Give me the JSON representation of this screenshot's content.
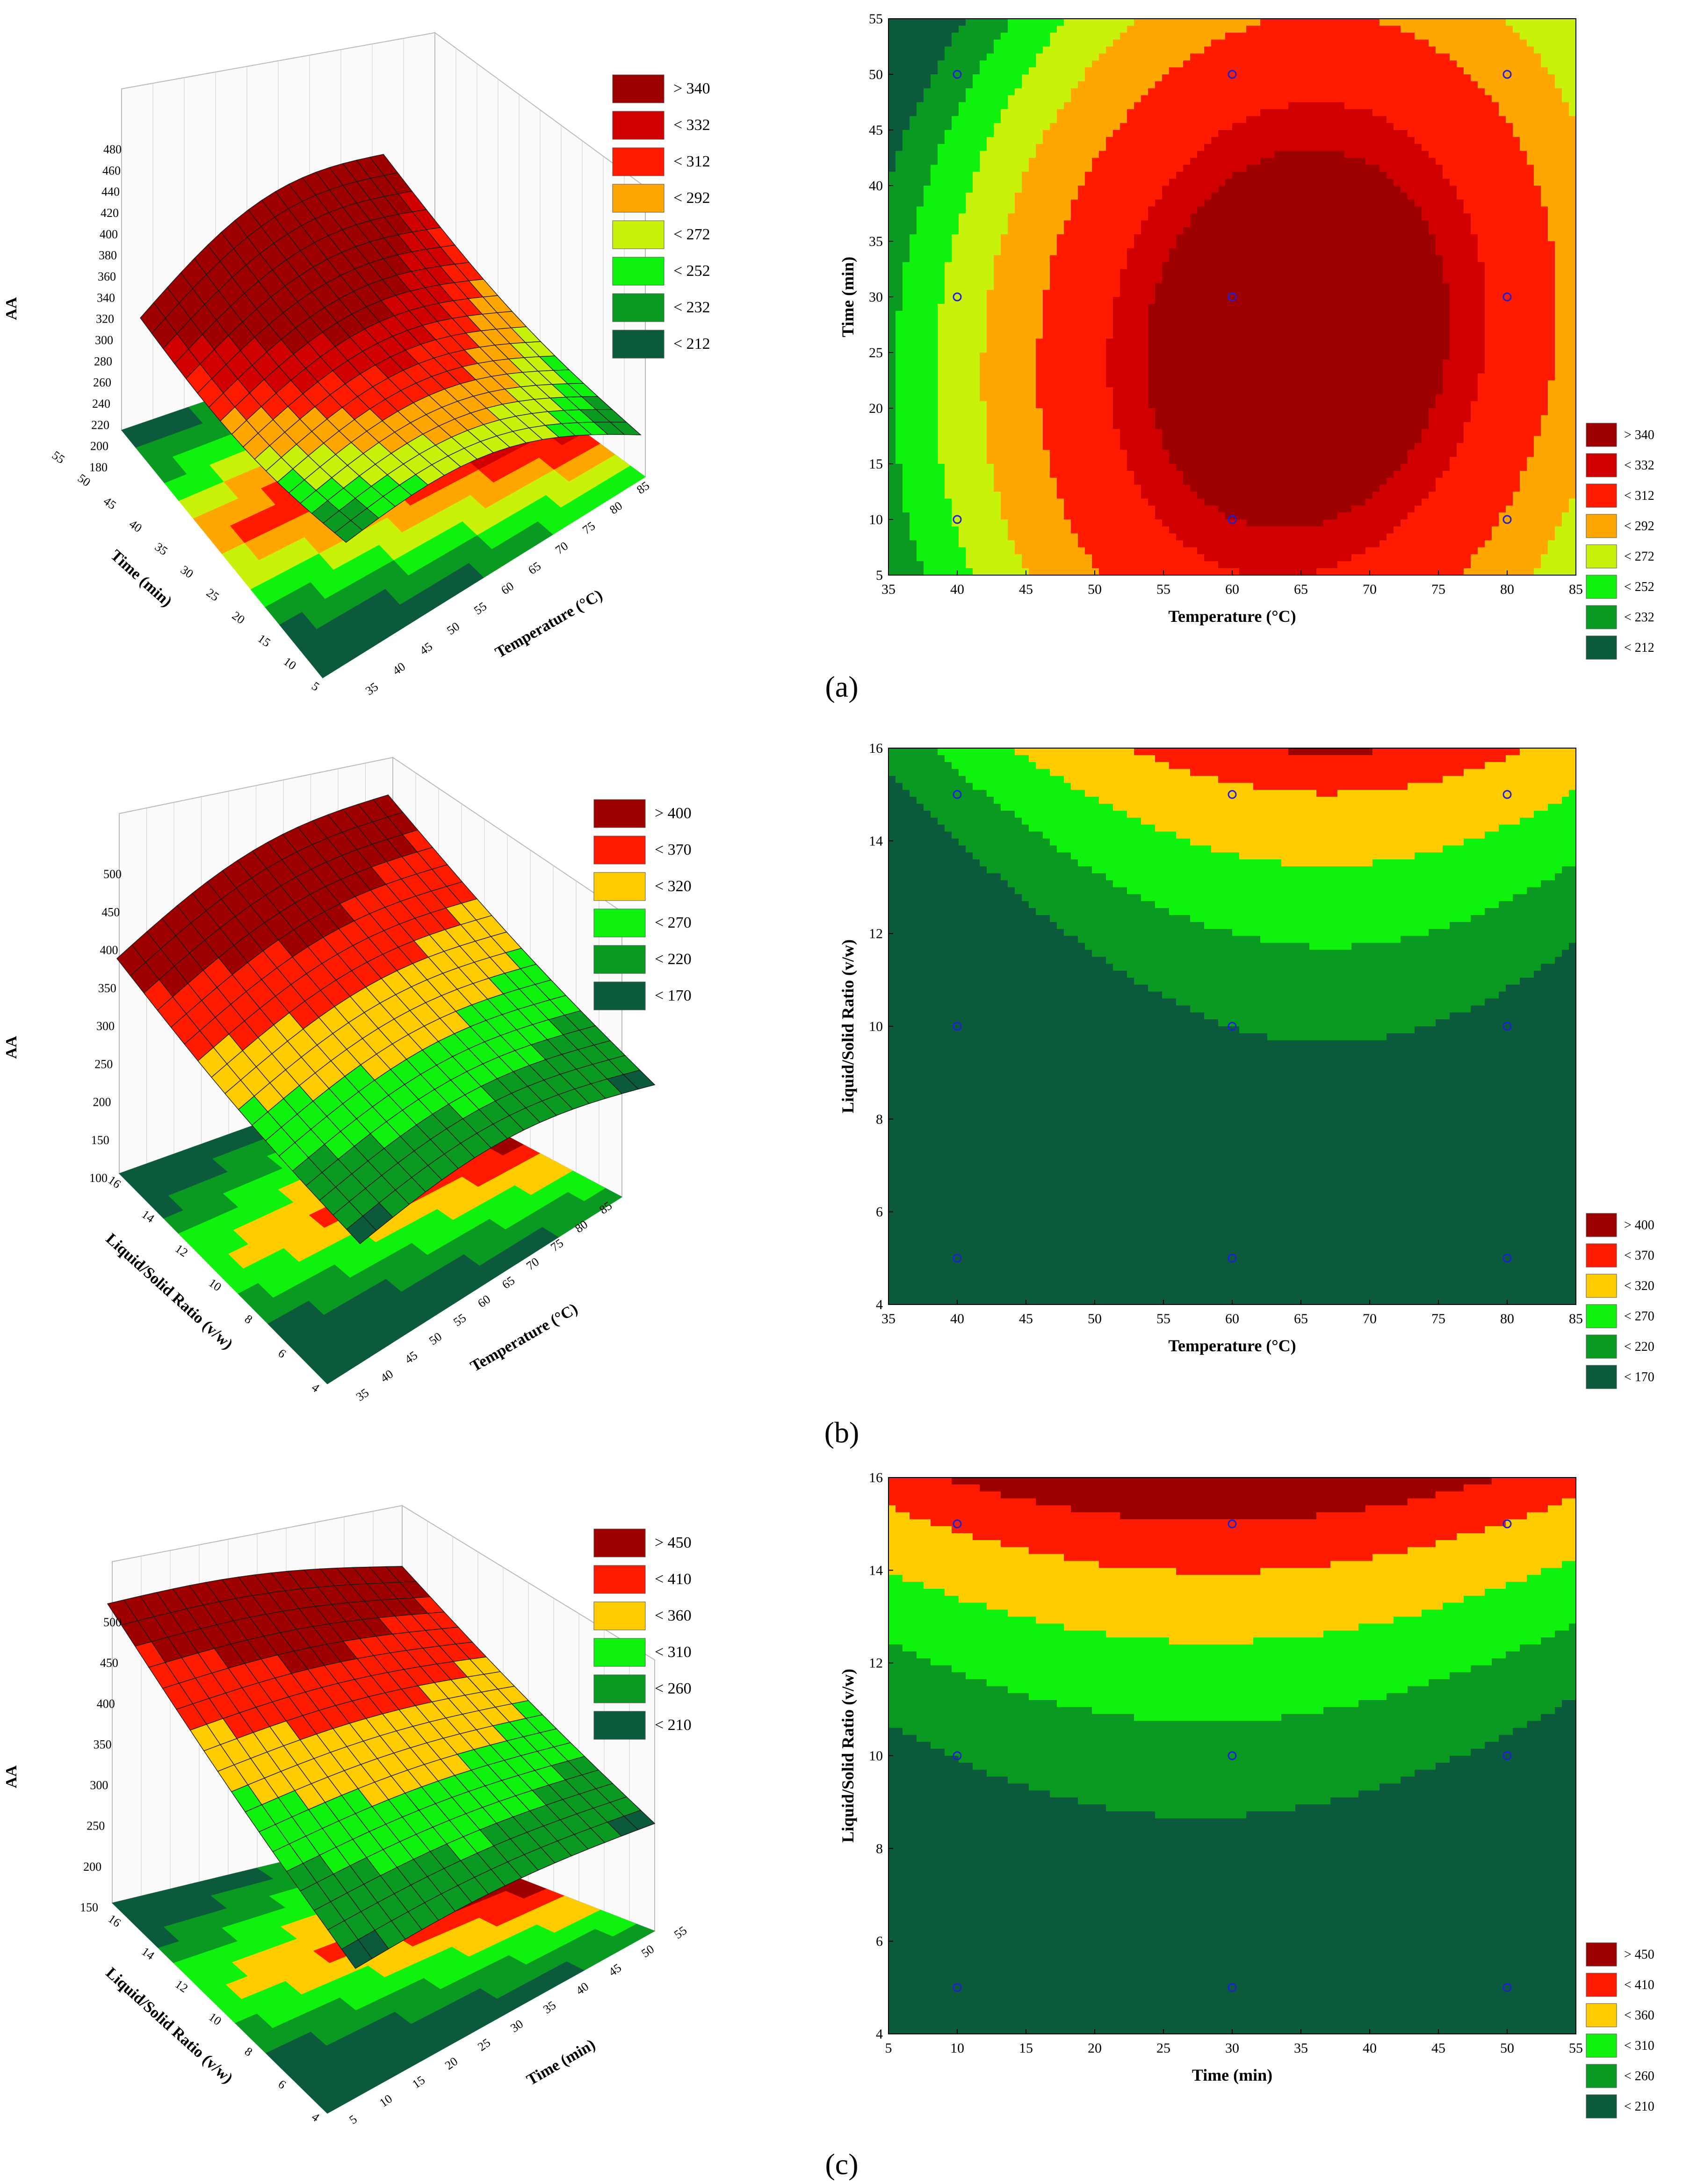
{
  "figure": {
    "panel_labels": [
      "(a)",
      "(b)",
      "(c)"
    ]
  },
  "colors": {
    "scale6": [
      "#0c5a3c",
      "#0a9a22",
      "#0ef20e",
      "#ffcc00",
      "#ff1a00",
      "#9e0000"
    ],
    "scale8": [
      "#0c5a3c",
      "#0a9a22",
      "#0ef20e",
      "#c9f20a",
      "#ffa600",
      "#ff1a00",
      "#d00000",
      "#9e0000"
    ],
    "points": "#2020d0",
    "grid": "#cccccc"
  },
  "chart_data": [
    {
      "id": "a-surface",
      "type": "surface3d",
      "zlabel": "AA",
      "xlabel": "Temperature (°C)",
      "ylabel": "Time (min)",
      "xticks": [
        "35",
        "40",
        "45",
        "50",
        "55",
        "60",
        "65",
        "70",
        "75",
        "80",
        "85"
      ],
      "yticks": [
        "5",
        "10",
        "15",
        "20",
        "25",
        "30",
        "35",
        "40",
        "45",
        "50",
        "55"
      ],
      "zticks": [
        "180",
        "200",
        "220",
        "240",
        "260",
        "280",
        "300",
        "320",
        "340",
        "360",
        "380",
        "400",
        "420",
        "440",
        "460",
        "480"
      ],
      "legend": [
        "> 340",
        "< 332",
        "< 312",
        "< 292",
        "< 272",
        "< 252",
        "< 232",
        "< 212"
      ]
    },
    {
      "id": "a-contour",
      "type": "contour",
      "xlabel": "Temperature (°C)",
      "ylabel": "Time (min)",
      "xlim": [
        35,
        85
      ],
      "ylim": [
        5,
        55
      ],
      "xticks": [
        "35",
        "40",
        "45",
        "50",
        "55",
        "60",
        "65",
        "70",
        "75",
        "80",
        "85"
      ],
      "yticks": [
        "5",
        "10",
        "15",
        "20",
        "25",
        "30",
        "35",
        "40",
        "45",
        "50",
        "55"
      ],
      "legend": [
        "> 340",
        "< 332",
        "< 312",
        "< 292",
        "< 272",
        "< 252",
        "< 232",
        "< 212"
      ],
      "levels": [
        212,
        232,
        252,
        272,
        292,
        312,
        332,
        340
      ],
      "model": {
        "xc": 65,
        "yc": 25,
        "peak": 355,
        "kx": 0.12,
        "ky": 0.05,
        "kxy": 0.015,
        "kxy_center": [
          57,
          30
        ]
      },
      "points": [
        [
          40,
          10
        ],
        [
          40,
          30
        ],
        [
          40,
          50
        ],
        [
          60,
          10
        ],
        [
          60,
          30
        ],
        [
          60,
          50
        ],
        [
          80,
          10
        ],
        [
          80,
          30
        ],
        [
          80,
          50
        ]
      ]
    },
    {
      "id": "b-surface",
      "type": "surface3d",
      "zlabel": "AA",
      "xlabel": "Temperature (°C)",
      "ylabel": "Liquid/Solid Ratio (v/w)",
      "xticks": [
        "35",
        "40",
        "45",
        "50",
        "55",
        "60",
        "65",
        "70",
        "75",
        "80",
        "85"
      ],
      "yticks": [
        "4",
        "6",
        "8",
        "10",
        "12",
        "14",
        "16"
      ],
      "zticks": [
        "100",
        "150",
        "200",
        "250",
        "300",
        "350",
        "400",
        "450",
        "500"
      ],
      "legend": [
        "> 400",
        "< 370",
        "< 320",
        "< 270",
        "< 220",
        "< 170"
      ]
    },
    {
      "id": "b-contour",
      "type": "contour",
      "xlabel": "Temperature (°C)",
      "ylabel": "Liquid/Solid Ratio (v/w)",
      "xlim": [
        35,
        85
      ],
      "ylim": [
        4,
        16
      ],
      "xticks": [
        "35",
        "40",
        "45",
        "50",
        "55",
        "60",
        "65",
        "70",
        "75",
        "80",
        "85"
      ],
      "yticks": [
        "4",
        "6",
        "8",
        "10",
        "12",
        "14",
        "16"
      ],
      "legend": [
        "> 400",
        "< 370",
        "< 320",
        "< 270",
        "< 220",
        "< 170"
      ],
      "levels": [
        170,
        220,
        270,
        320,
        370,
        400
      ],
      "model": {
        "xc": 67,
        "yc": 0,
        "peak": 115,
        "kx": 0.16,
        "ky": -1.13,
        "kxy": 0,
        "kxy_center": [
          0,
          0
        ]
      },
      "points": [
        [
          40,
          5
        ],
        [
          40,
          10
        ],
        [
          40,
          15
        ],
        [
          60,
          5
        ],
        [
          60,
          10
        ],
        [
          60,
          15
        ],
        [
          80,
          5
        ],
        [
          80,
          10
        ],
        [
          80,
          15
        ]
      ]
    },
    {
      "id": "c-surface",
      "type": "surface3d",
      "zlabel": "AA",
      "xlabel": "Time (min)",
      "ylabel": "Liquid/Solid Ratio (v/w)",
      "xticks": [
        "5",
        "10",
        "15",
        "20",
        "25",
        "30",
        "35",
        "40",
        "45",
        "50",
        "55"
      ],
      "yticks": [
        "4",
        "6",
        "8",
        "10",
        "12",
        "14",
        "16"
      ],
      "zticks": [
        "150",
        "200",
        "250",
        "300",
        "350",
        "400",
        "450",
        "500"
      ],
      "legend": [
        "> 450",
        "< 410",
        "< 360",
        "< 310",
        "< 260",
        "< 210"
      ]
    },
    {
      "id": "c-contour",
      "type": "contour",
      "xlabel": "Time (min)",
      "ylabel": "Liquid/Solid Ratio (v/w)",
      "xlim": [
        5,
        55
      ],
      "ylim": [
        4,
        16
      ],
      "xticks": [
        "5",
        "10",
        "15",
        "20",
        "25",
        "30",
        "35",
        "40",
        "45",
        "50",
        "55"
      ],
      "yticks": [
        "4",
        "6",
        "8",
        "10",
        "12",
        "14",
        "16"
      ],
      "legend": [
        "> 450",
        "< 410",
        "< 360",
        "< 310",
        "< 260",
        "< 210"
      ],
      "levels": [
        210,
        260,
        310,
        360,
        410,
        450
      ],
      "model": {
        "xc": 28,
        "yc": 0,
        "peak": 165,
        "kx": 0.09,
        "ky": -1.26,
        "kxy": 0.035,
        "kxy_center": [
          30,
          10
        ]
      },
      "points": [
        [
          10,
          5
        ],
        [
          10,
          10
        ],
        [
          10,
          15
        ],
        [
          30,
          5
        ],
        [
          30,
          10
        ],
        [
          30,
          15
        ],
        [
          50,
          5
        ],
        [
          50,
          10
        ],
        [
          50,
          15
        ]
      ]
    }
  ]
}
